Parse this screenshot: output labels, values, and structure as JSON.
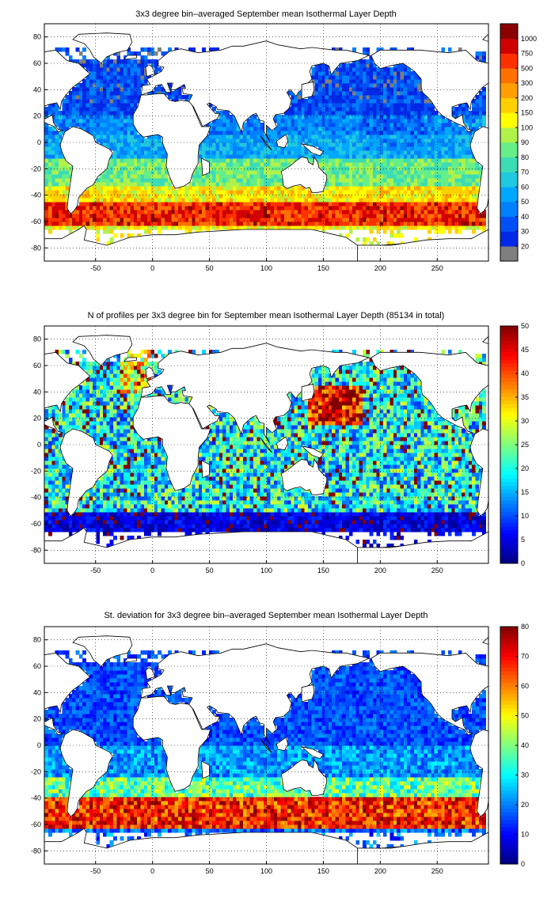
{
  "chart_data": [
    {
      "type": "heatmap",
      "title": "3x3 degree bin–averaged September mean Isothermal Layer Depth",
      "xlim": [
        -95,
        295
      ],
      "ylim": [
        -90,
        90
      ],
      "x_ticks": [
        -50,
        0,
        50,
        100,
        150,
        200,
        250
      ],
      "y_ticks": [
        80,
        60,
        40,
        20,
        0,
        -20,
        -40,
        -60,
        -80
      ],
      "grid": true,
      "grid_style": "dotted",
      "colorbar": {
        "scale": "discrete",
        "labels": [
          "20",
          "30",
          "40",
          "50",
          "60",
          "70",
          "80",
          "90",
          "100",
          "150",
          "200",
          "300",
          "500",
          "750",
          "1000"
        ],
        "colors": [
          "#7f7f7f",
          "#0028e6",
          "#0050f5",
          "#0080ff",
          "#00a8ff",
          "#20c8e0",
          "#3cdcb4",
          "#66ee88",
          "#b0f24a",
          "#ffff00",
          "#ffd000",
          "#ffa000",
          "#ff7000",
          "#ff3000",
          "#d00000",
          "#8b0000"
        ]
      }
    },
    {
      "type": "heatmap",
      "title": "N of profiles per 3x3 degree bin for September mean Isothermal Layer Depth  (85134 in total)",
      "xlim": [
        -95,
        295
      ],
      "ylim": [
        -90,
        90
      ],
      "x_ticks": [
        -50,
        0,
        50,
        100,
        150,
        200,
        250
      ],
      "y_ticks": [
        80,
        60,
        40,
        20,
        0,
        -20,
        -40,
        -60,
        -80
      ],
      "grid": true,
      "grid_style": "dotted",
      "total_profiles": 85134,
      "colorbar": {
        "scale": "linear",
        "range": [
          0,
          50
        ],
        "labels": [
          "0",
          "5",
          "10",
          "15",
          "20",
          "25",
          "30",
          "35",
          "40",
          "45",
          "50"
        ]
      }
    },
    {
      "type": "heatmap",
      "title": "St. deviation for 3x3 degree bin–averaged September mean Isothermal Layer Depth",
      "xlim": [
        -95,
        295
      ],
      "ylim": [
        -90,
        90
      ],
      "x_ticks": [
        -50,
        0,
        50,
        100,
        150,
        200,
        250
      ],
      "y_ticks": [
        80,
        60,
        40,
        20,
        0,
        -20,
        -40,
        -60,
        -80
      ],
      "grid": true,
      "grid_style": "dotted",
      "colorbar": {
        "scale": "linear",
        "range": [
          0,
          80
        ],
        "labels": [
          "0",
          "10",
          "20",
          "30",
          "40",
          "50",
          "60",
          "70",
          "80"
        ]
      }
    }
  ]
}
